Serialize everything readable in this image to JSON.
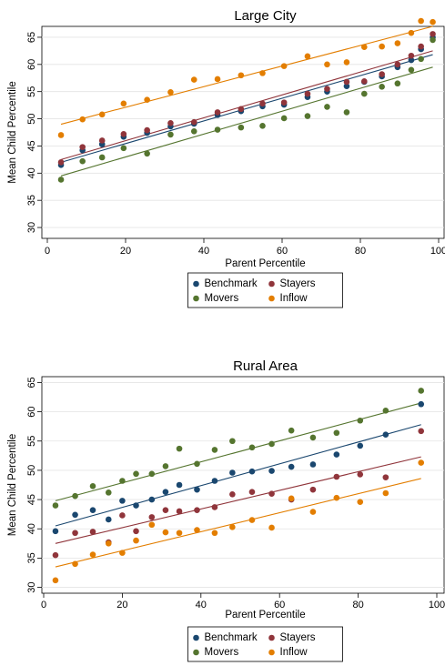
{
  "chart_data": [
    {
      "type": "scatter",
      "title": "Large City",
      "xlabel": "Parent Percentile",
      "ylabel": "Mean Child Percentile",
      "xlim": [
        0,
        100
      ],
      "ylim": [
        28,
        67
      ],
      "xticks": [
        0,
        20,
        40,
        60,
        80,
        100
      ],
      "yticks": [
        30,
        35,
        40,
        45,
        50,
        55,
        60,
        65
      ],
      "grid": true,
      "legend": "bottom",
      "series": [
        {
          "name": "Benchmark",
          "color": "#1a476f",
          "x": [
            3.5,
            9,
            14,
            19.5,
            25.5,
            31.5,
            37.5,
            43.5,
            49.5,
            55,
            60.5,
            66.5,
            71.5,
            76.5,
            81,
            85.5,
            89.5,
            93,
            95.5,
            98.5
          ],
          "y": [
            41.5,
            44.2,
            45.3,
            46.7,
            47.4,
            48.6,
            49.1,
            50.7,
            51.4,
            52.3,
            52.6,
            54.0,
            55.0,
            56.0,
            56.8,
            57.8,
            59.5,
            60.8,
            62.8,
            65.0
          ],
          "fit": [
            [
              3.5,
              42.0
            ],
            [
              98.5,
              61.8
            ]
          ]
        },
        {
          "name": "Stayers",
          "color": "#90353b",
          "x": [
            3.5,
            9,
            14,
            19.5,
            25.5,
            31.5,
            37.5,
            43.5,
            49.5,
            55,
            60.5,
            66.5,
            71.5,
            76.5,
            81,
            85.5,
            89.5,
            93,
            95.5,
            98.5
          ],
          "y": [
            42.0,
            44.8,
            46.0,
            47.2,
            47.9,
            49.2,
            49.4,
            51.2,
            51.8,
            52.8,
            53.0,
            54.6,
            55.5,
            56.8,
            56.9,
            58.2,
            60.0,
            61.6,
            63.3,
            65.6
          ],
          "fit": [
            [
              3.5,
              42.5
            ],
            [
              98.5,
              62.5
            ]
          ]
        },
        {
          "name": "Movers",
          "color": "#55752f",
          "x": [
            3.5,
            9,
            14,
            19.5,
            25.5,
            31.5,
            37.5,
            43.5,
            49.5,
            55,
            60.5,
            66.5,
            71.5,
            76.5,
            81,
            85.5,
            89.5,
            93,
            95.5,
            98.5
          ],
          "y": [
            38.8,
            42.2,
            42.9,
            44.6,
            43.6,
            47.1,
            47.7,
            48.0,
            48.4,
            48.7,
            50.1,
            50.5,
            52.2,
            51.2,
            54.6,
            55.9,
            56.5,
            59.0,
            61.0,
            64.5
          ],
          "fit": [
            [
              3.5,
              39.5
            ],
            [
              98.5,
              59.5
            ]
          ]
        },
        {
          "name": "Inflow",
          "color": "#e37e00",
          "x": [
            3.5,
            9,
            14,
            19.5,
            25.5,
            31.5,
            37.5,
            43.5,
            49.5,
            55,
            60.5,
            66.5,
            71.5,
            76.5,
            81,
            85.5,
            89.5,
            93,
            95.5,
            98.5
          ],
          "y": [
            47.0,
            49.9,
            50.8,
            52.8,
            53.5,
            54.9,
            57.2,
            57.3,
            58.0,
            58.4,
            59.7,
            61.5,
            60.0,
            60.4,
            63.2,
            63.3,
            63.9,
            65.8,
            68.0,
            67.8
          ],
          "fit": [
            [
              3.5,
              49.0
            ],
            [
              98.5,
              67.0
            ]
          ]
        }
      ]
    },
    {
      "type": "scatter",
      "title": "Rural Area",
      "xlabel": "Parent Percentile",
      "ylabel": "Mean Child Percentile",
      "xlim": [
        0,
        100
      ],
      "ylim": [
        29,
        66
      ],
      "xticks": [
        0,
        20,
        40,
        60,
        80,
        100
      ],
      "yticks": [
        30,
        35,
        40,
        45,
        50,
        55,
        60,
        65
      ],
      "grid": true,
      "legend": "bottom",
      "series": [
        {
          "name": "Benchmark",
          "color": "#1a476f",
          "x": [
            3,
            8,
            12.5,
            16.5,
            20,
            23.5,
            27.5,
            31,
            34.5,
            39,
            43.5,
            48,
            53,
            58,
            63,
            68.5,
            74.5,
            80.5,
            87,
            96
          ],
          "y": [
            39.6,
            42.4,
            43.2,
            41.6,
            44.8,
            44.0,
            45.0,
            46.3,
            47.5,
            46.7,
            48.2,
            49.6,
            49.8,
            49.9,
            50.6,
            51.0,
            52.7,
            54.2,
            56.1,
            61.3
          ],
          "fit": [
            [
              3,
              40.5
            ],
            [
              96,
              57.8
            ]
          ]
        },
        {
          "name": "Stayers",
          "color": "#90353b",
          "x": [
            3,
            8,
            12.5,
            16.5,
            20,
            23.5,
            27.5,
            31,
            34.5,
            39,
            43.5,
            48,
            53,
            58,
            63,
            68.5,
            74.5,
            80.5,
            87,
            96
          ],
          "y": [
            35.5,
            39.3,
            39.5,
            37.7,
            42.3,
            39.6,
            42.0,
            43.2,
            43.0,
            43.2,
            43.7,
            45.9,
            46.3,
            46.0,
            45.0,
            46.7,
            48.9,
            49.3,
            48.8,
            56.7
          ],
          "fit": [
            [
              3,
              37.5
            ],
            [
              96,
              52.3
            ]
          ]
        },
        {
          "name": "Movers",
          "color": "#55752f",
          "x": [
            3,
            8,
            12.5,
            16.5,
            20,
            23.5,
            27.5,
            31,
            34.5,
            39,
            43.5,
            48,
            53,
            58,
            63,
            68.5,
            74.5,
            80.5,
            87,
            96
          ],
          "y": [
            44.0,
            45.6,
            47.3,
            46.2,
            48.2,
            49.4,
            49.4,
            50.7,
            53.7,
            51.1,
            53.5,
            55.0,
            53.9,
            54.5,
            56.8,
            55.6,
            56.4,
            58.5,
            60.2,
            63.6
          ],
          "fit": [
            [
              3,
              44.8
            ],
            [
              96,
              61.5
            ]
          ]
        },
        {
          "name": "Inflow",
          "color": "#e37e00",
          "x": [
            3,
            8,
            12.5,
            16.5,
            20,
            23.5,
            27.5,
            31,
            34.5,
            39,
            43.5,
            48,
            53,
            58,
            63,
            68.5,
            74.5,
            80.5,
            87,
            96
          ],
          "y": [
            31.2,
            34.0,
            35.6,
            37.5,
            35.9,
            38.0,
            40.7,
            39.4,
            39.3,
            39.8,
            39.3,
            40.3,
            41.5,
            40.2,
            45.2,
            42.9,
            45.3,
            44.6,
            46.1,
            51.3
          ],
          "fit": [
            [
              3,
              33.5
            ],
            [
              96,
              48.6
            ]
          ]
        }
      ]
    }
  ]
}
